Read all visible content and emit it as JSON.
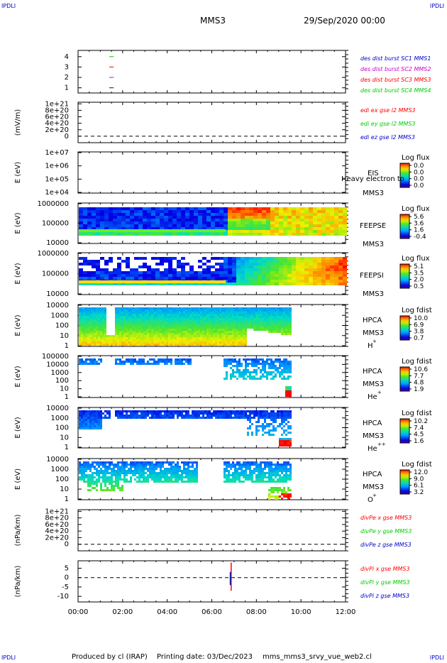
{
  "corners": {
    "tl": "IPDLI",
    "tr": "IPDLI",
    "bl": "IPDLI",
    "br": "IPDLI"
  },
  "header": {
    "spacecraft": "MMS3",
    "datetime": "29/Sep/2020 00:00"
  },
  "footer": {
    "produced": "Produced by cl (IRAP)",
    "printing": "Printing date: 03/Dec/2023",
    "script": "mms_mms3_srvy_vue_web2.cl"
  },
  "chart_data": [
    {
      "type": "line",
      "id": "burst",
      "yticks": [
        "1",
        "2",
        "3",
        "4"
      ],
      "ylim": [
        0.5,
        4.6
      ],
      "legend": [
        {
          "label": "des dist burst SC1 MMS1",
          "color": "#0000cc"
        },
        {
          "label": "des dist burst SC2 MMS2",
          "color": "#cc00cc"
        },
        {
          "label": "des dist burst SC3 MMS3",
          "color": "#ff0000"
        },
        {
          "label": "des dist burst SC4 MMS4",
          "color": "#00cc00"
        }
      ],
      "segments": [
        {
          "y": 4,
          "x": [
            1.4,
            1.6
          ],
          "color": "#00cc00"
        },
        {
          "y": 3,
          "x": [
            1.4,
            1.6
          ],
          "color": "#ff0000"
        },
        {
          "y": 2,
          "x": [
            1.4,
            1.6
          ],
          "color": "#cc00cc"
        },
        {
          "y": 1,
          "x": [
            1.4,
            1.6
          ],
          "color": "#0000cc"
        }
      ]
    },
    {
      "type": "line",
      "id": "edi",
      "ylabel": "(mV/m)",
      "yticks": [
        "0",
        "2e+20",
        "4e+20",
        "6e+20",
        "8e+20",
        "1e+21"
      ],
      "ylim": [
        -2e+20,
        1.05e+21
      ],
      "legend": [
        {
          "label": "edi ex gse l2 MMS3",
          "color": "#ff0000"
        },
        {
          "label": "edi ey gse l2 MMS3",
          "color": "#00cc00"
        },
        {
          "label": "edi ez gse l2 MMS3",
          "color": "#0000cc"
        }
      ],
      "zero_line": true
    },
    {
      "type": "heatmap",
      "id": "eis",
      "ylabel": "E (eV)",
      "yticks": [
        "1e+04",
        "1e+05",
        "1e+06",
        "1e+07"
      ],
      "labels": [
        "EIS",
        "MMS3"
      ],
      "overlay": "Heavy electron to",
      "cbar_title": "Log flux",
      "cbar_ticks": [
        "0.0",
        "0.0",
        "0.0",
        "0.0"
      ]
    },
    {
      "type": "heatmap",
      "id": "feepse",
      "ylabel": "E (eV)",
      "yticks": [
        "10000",
        "100000",
        "1000000"
      ],
      "labels": [
        "FEEPSE",
        "MMS3"
      ],
      "cbar_title": "Log flux",
      "cbar_ticks": [
        "5.6",
        "3.6",
        "1.6",
        "-0.4"
      ]
    },
    {
      "type": "heatmap",
      "id": "feepsi",
      "ylabel": "E (eV)",
      "yticks": [
        "10000",
        "100000",
        "1000000"
      ],
      "labels": [
        "FEEPSI",
        "MMS3"
      ],
      "cbar_title": "Log flux",
      "cbar_ticks": [
        "5.1",
        "3.5",
        "2.0",
        "0.5"
      ]
    },
    {
      "type": "heatmap",
      "id": "hpca-h",
      "ylabel": "E (eV)",
      "yticks": [
        "1",
        "10",
        "100",
        "1000",
        "10000"
      ],
      "labels": [
        "HPCA",
        "MMS3",
        "H",
        "+"
      ],
      "cbar_title": "Log fdist",
      "cbar_ticks": [
        "10.0",
        "6.9",
        "3.8",
        "0.7"
      ]
    },
    {
      "type": "heatmap",
      "id": "hpca-he",
      "ylabel": "E (eV)",
      "yticks": [
        "1",
        "10",
        "100",
        "1000",
        "10000",
        "100000"
      ],
      "labels": [
        "HPCA",
        "MMS3",
        "He",
        "+"
      ],
      "cbar_title": "Log fdist",
      "cbar_ticks": [
        "10.6",
        "7.7",
        "4.8",
        "1.9"
      ]
    },
    {
      "type": "heatmap",
      "id": "hpca-hepp",
      "ylabel": "E (eV)",
      "yticks": [
        "1",
        "10",
        "100",
        "1000",
        "10000"
      ],
      "labels": [
        "HPCA",
        "MMS3",
        "He",
        "++"
      ],
      "cbar_title": "Log fdist",
      "cbar_ticks": [
        "10.2",
        "7.4",
        "4.5",
        "1.6"
      ]
    },
    {
      "type": "heatmap",
      "id": "hpca-o",
      "ylabel": "E (eV)",
      "yticks": [
        "1",
        "10",
        "100",
        "1000",
        "10000"
      ],
      "labels": [
        "HPCA",
        "MMS3",
        "O",
        "+"
      ],
      "cbar_title": "Log fdist",
      "cbar_ticks": [
        "12.0",
        "9.0",
        "6.1",
        "3.2"
      ]
    },
    {
      "type": "line",
      "id": "divpe",
      "ylabel": "(nPa/km)",
      "yticks": [
        "0",
        "2e+20",
        "4e+20",
        "6e+20",
        "8e+20",
        "1e+21"
      ],
      "ylim": [
        -2e+20,
        1.05e+21
      ],
      "legend": [
        {
          "label": "divPe x gse MMS3",
          "color": "#ff0000"
        },
        {
          "label": "divPe y gse MMS3",
          "color": "#00cc00"
        },
        {
          "label": "divPe z gse MMS3",
          "color": "#0000cc"
        }
      ],
      "zero_line": true
    },
    {
      "type": "line",
      "id": "divpi",
      "ylabel": "(nPa/km)",
      "yticks": [
        "-10",
        "-5",
        "0",
        "5"
      ],
      "ylim": [
        -13,
        9
      ],
      "legend": [
        {
          "label": "divPi x gse MMS3",
          "color": "#ff0000"
        },
        {
          "label": "divPi y gse MMS3",
          "color": "#00cc00"
        },
        {
          "label": "divPi z gse MMS3",
          "color": "#0000cc"
        }
      ],
      "zero_line": true,
      "spikes": [
        {
          "t": 6.87,
          "y": [
            -7,
            8
          ],
          "color": "#ff0000"
        },
        {
          "t": 6.84,
          "y": [
            -3,
            2
          ],
          "color": "#00cc00"
        },
        {
          "t": 6.83,
          "y": [
            -4,
            3
          ],
          "color": "#0000cc"
        }
      ]
    }
  ],
  "xaxis": {
    "ticks": [
      "00:00",
      "02:00",
      "04:00",
      "06:00",
      "08:00",
      "10:00",
      "12:00"
    ],
    "xlim": [
      0,
      12
    ]
  }
}
